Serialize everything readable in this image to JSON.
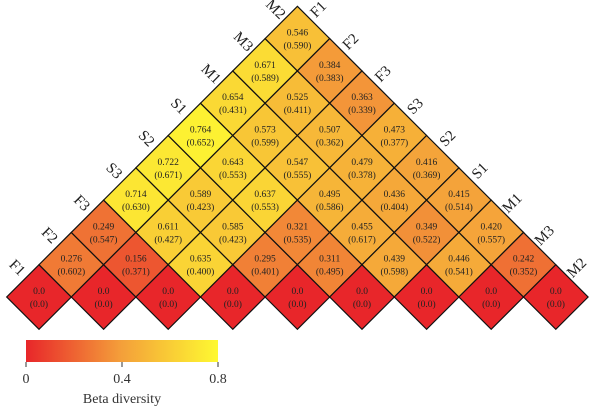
{
  "chart_data": {
    "type": "heatmap",
    "title": "",
    "labels": [
      "F1",
      "F2",
      "F3",
      "S3",
      "S2",
      "S1",
      "M1",
      "M3",
      "M2"
    ],
    "matrix": [
      [
        {
          "v": "0.0",
          "p": "(0.0)",
          "val": 0.0
        },
        {
          "v": "0.276",
          "p": "(0.602)",
          "val": 0.276
        },
        {
          "v": "0.249",
          "p": "(0.547)",
          "val": 0.249
        },
        {
          "v": "0.714",
          "p": "(0.630)",
          "val": 0.714
        },
        {
          "v": "0.722",
          "p": "(0.671)",
          "val": 0.722
        },
        {
          "v": "0.764",
          "p": "(0.652)",
          "val": 0.764
        },
        {
          "v": "0.654",
          "p": "(0.431)",
          "val": 0.654
        },
        {
          "v": "0.671",
          "p": "(0.589)",
          "val": 0.671
        },
        {
          "v": "0.546",
          "p": "(0.590)",
          "val": 0.546
        }
      ],
      [
        {
          "v": "0.0",
          "p": "(0.0)",
          "val": 0.0
        },
        {
          "v": "0.156",
          "p": "(0.371)",
          "val": 0.156
        },
        {
          "v": "0.611",
          "p": "(0.427)",
          "val": 0.611
        },
        {
          "v": "0.589",
          "p": "(0.423)",
          "val": 0.589
        },
        {
          "v": "0.643",
          "p": "(0.553)",
          "val": 0.643
        },
        {
          "v": "0.573",
          "p": "(0.599)",
          "val": 0.573
        },
        {
          "v": "0.525",
          "p": "(0.411)",
          "val": 0.525
        },
        {
          "v": "0.384",
          "p": "(0.383)",
          "val": 0.384
        }
      ],
      [
        {
          "v": "0.0",
          "p": "(0.0)",
          "val": 0.0
        },
        {
          "v": "0.635",
          "p": "(0.400)",
          "val": 0.635
        },
        {
          "v": "0.585",
          "p": "(0.423)",
          "val": 0.585
        },
        {
          "v": "0.637",
          "p": "(0.553)",
          "val": 0.637
        },
        {
          "v": "0.547",
          "p": "(0.555)",
          "val": 0.547
        },
        {
          "v": "0.507",
          "p": "(0.362)",
          "val": 0.507
        },
        {
          "v": "0.363",
          "p": "(0.339)",
          "val": 0.363
        }
      ],
      [
        {
          "v": "0.0",
          "p": "(0.0)",
          "val": 0.0
        },
        {
          "v": "0.295",
          "p": "(0.401)",
          "val": 0.295
        },
        {
          "v": "0.321",
          "p": "(0.535)",
          "val": 0.321
        },
        {
          "v": "0.495",
          "p": "(0.586)",
          "val": 0.495
        },
        {
          "v": "0.479",
          "p": "(0.378)",
          "val": 0.479
        },
        {
          "v": "0.473",
          "p": "(0.377)",
          "val": 0.473
        }
      ],
      [
        {
          "v": "0.0",
          "p": "(0.0)",
          "val": 0.0
        },
        {
          "v": "0.311",
          "p": "(0.495)",
          "val": 0.311
        },
        {
          "v": "0.455",
          "p": "(0.617)",
          "val": 0.455
        },
        {
          "v": "0.436",
          "p": "(0.404)",
          "val": 0.436
        },
        {
          "v": "0.416",
          "p": "(0.369)",
          "val": 0.416
        }
      ],
      [
        {
          "v": "0.0",
          "p": "(0.0)",
          "val": 0.0
        },
        {
          "v": "0.439",
          "p": "(0.598)",
          "val": 0.439
        },
        {
          "v": "0.349",
          "p": "(0.522)",
          "val": 0.349
        },
        {
          "v": "0.415",
          "p": "(0.514)",
          "val": 0.415
        }
      ],
      [
        {
          "v": "0.0",
          "p": "(0.0)",
          "val": 0.0
        },
        {
          "v": "0.446",
          "p": "(0.541)",
          "val": 0.446
        },
        {
          "v": "0.420",
          "p": "(0.557)",
          "val": 0.42
        }
      ],
      [
        {
          "v": "0.0",
          "p": "(0.0)",
          "val": 0.0
        },
        {
          "v": "0.242",
          "p": "(0.352)",
          "val": 0.242
        }
      ],
      [
        {
          "v": "0.0",
          "p": "(0.0)",
          "val": 0.0
        }
      ]
    ],
    "colorscale": {
      "title": "Beta diversity",
      "min": 0,
      "max": 0.8,
      "ticks": [
        "0",
        "0.4",
        "0.8"
      ],
      "colors": [
        "#e8262a",
        "#f4a03a",
        "#fef931"
      ]
    }
  }
}
